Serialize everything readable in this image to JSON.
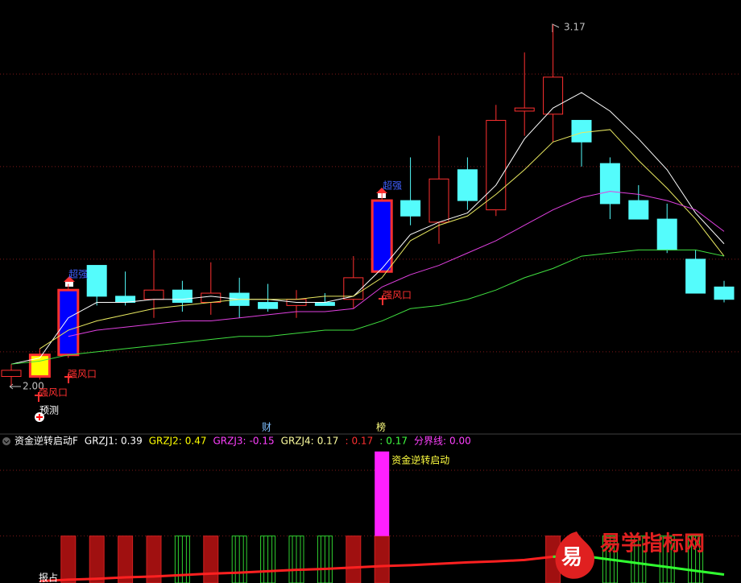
{
  "chart_data": [
    {
      "type": "candlestick",
      "ylim": [
        1.88,
        3.25
      ],
      "gridlines": [
        3.01,
        2.71,
        2.41,
        2.11
      ],
      "up_color": "#ff3030",
      "down_color": "#54fcfc",
      "open": [
        2.03,
        2.03,
        2.1,
        2.39,
        2.29,
        2.28,
        2.31,
        2.27,
        2.3,
        2.27,
        2.26,
        2.27,
        2.28,
        2.37,
        2.6,
        2.53,
        2.7,
        2.57,
        2.89,
        2.88,
        2.86,
        2.72,
        2.6,
        2.54,
        2.41,
        2.32
      ],
      "high": [
        2.07,
        2.12,
        2.33,
        2.39,
        2.37,
        2.44,
        2.34,
        2.4,
        2.35,
        2.33,
        2.31,
        2.3,
        2.42,
        2.63,
        2.74,
        2.81,
        2.74,
        2.91,
        3.08,
        3.17,
        2.86,
        2.74,
        2.65,
        2.59,
        2.44,
        2.34
      ],
      "low": [
        2.0,
        2.02,
        2.09,
        2.26,
        2.26,
        2.22,
        2.24,
        2.23,
        2.22,
        2.24,
        2.22,
        2.26,
        2.25,
        2.37,
        2.52,
        2.46,
        2.57,
        2.55,
        2.81,
        2.79,
        2.71,
        2.54,
        2.54,
        2.43,
        2.3,
        2.27
      ],
      "close": [
        2.05,
        2.1,
        2.31,
        2.29,
        2.27,
        2.31,
        2.27,
        2.3,
        2.26,
        2.25,
        2.28,
        2.26,
        2.35,
        2.6,
        2.55,
        2.67,
        2.6,
        2.86,
        2.9,
        3.0,
        2.79,
        2.59,
        2.54,
        2.44,
        2.3,
        2.28
      ],
      "body_colors": [
        null,
        "#ffff00",
        "#0000ff",
        null,
        null,
        null,
        null,
        null,
        null,
        null,
        null,
        null,
        null,
        "#0000ff",
        null,
        null,
        null,
        null,
        null,
        null,
        null,
        null,
        null,
        null,
        null,
        null
      ],
      "series": [
        {
          "color": "#ffffff",
          "values": [
            2.07,
            2.09,
            2.22,
            2.27,
            2.27,
            2.28,
            2.28,
            2.29,
            2.28,
            2.28,
            2.27,
            2.27,
            2.29,
            2.38,
            2.49,
            2.53,
            2.56,
            2.65,
            2.8,
            2.9,
            2.95,
            2.89,
            2.8,
            2.7,
            2.56,
            2.46
          ]
        },
        {
          "color": "#e8e860",
          "values": [
            null,
            2.12,
            2.18,
            2.21,
            2.23,
            2.25,
            2.26,
            2.27,
            2.28,
            2.28,
            2.28,
            2.29,
            2.29,
            2.35,
            2.47,
            2.52,
            2.55,
            2.62,
            2.7,
            2.79,
            2.82,
            2.83,
            2.73,
            2.64,
            2.54,
            2.42
          ]
        },
        {
          "color": "#e040e0",
          "values": [
            null,
            null,
            2.16,
            2.18,
            2.19,
            2.2,
            2.21,
            2.21,
            2.22,
            2.23,
            2.24,
            2.24,
            2.25,
            2.32,
            2.36,
            2.39,
            2.43,
            2.47,
            2.52,
            2.57,
            2.61,
            2.63,
            2.62,
            2.6,
            2.57,
            2.5
          ]
        },
        {
          "color": "#40e040",
          "values": [
            2.07,
            2.08,
            2.1,
            2.11,
            2.12,
            2.13,
            2.14,
            2.15,
            2.16,
            2.16,
            2.17,
            2.18,
            2.18,
            2.21,
            2.25,
            2.26,
            2.28,
            2.31,
            2.35,
            2.38,
            2.42,
            2.43,
            2.44,
            2.44,
            2.44,
            2.42
          ]
        }
      ],
      "annotations": [
        {
          "text": "3.17",
          "color": "#c0c0c0"
        },
        {
          "text": "2.00",
          "color": "#c0c0c0"
        },
        {
          "text": "超强",
          "color": "#4060ff"
        },
        {
          "text": "超强",
          "color": "#4060ff"
        },
        {
          "text": "强风口",
          "color": "#ff3030"
        },
        {
          "text": "强风口",
          "color": "#ff3030"
        },
        {
          "text": "强风口",
          "color": "#ff3030"
        },
        {
          "text": "预测",
          "color": "#ffffff"
        },
        {
          "text": "财",
          "color": "#80c0ff"
        },
        {
          "text": "榜",
          "color": "#ffff80"
        }
      ]
    },
    {
      "type": "bar",
      "ylim": [
        0,
        3
      ],
      "gridlines": [
        2.4,
        1.0
      ],
      "title": "资金逆转启动F",
      "legend": [
        {
          "label": "GRZJ1:",
          "value": 0.39,
          "color": "#ffffff"
        },
        {
          "label": "GRZJ2:",
          "value": 0.47,
          "color": "#ffff00"
        },
        {
          "label": "GRZJ3:",
          "value": -0.15,
          "color": "#ff40ff"
        },
        {
          "label": "GRZJ4:",
          "value": 0.17,
          "color": "#ffffa0"
        },
        {
          "label": ":",
          "value": 0.17,
          "color": "#ff3030"
        },
        {
          "label": ":",
          "value": 0.17,
          "color": "#40ff40"
        },
        {
          "label": "分界线:",
          "value": 0,
          "value_label": "0.00",
          "color": "#ff40ff"
        }
      ],
      "values": [
        null,
        null,
        1,
        1,
        1,
        1,
        1,
        1,
        1,
        1,
        1,
        1,
        1,
        1,
        null,
        null,
        null,
        null,
        null,
        1,
        null,
        1,
        1,
        1,
        1,
        null
      ],
      "colors": [
        null,
        null,
        "red",
        "red",
        "red",
        "red",
        "green",
        "red",
        "green",
        "green",
        "green",
        "green",
        "red",
        "red",
        null,
        null,
        null,
        null,
        null,
        "red",
        null,
        "green",
        "green",
        "green",
        "green",
        null
      ],
      "signal": {
        "text": "资金逆转启动",
        "color": "#ff20ff",
        "values": [
          null,
          null,
          null,
          null,
          null,
          null,
          null,
          null,
          null,
          null,
          null,
          null,
          null,
          1.8,
          null,
          null,
          null,
          null,
          null,
          null,
          null,
          null,
          null,
          null,
          null,
          null
        ]
      },
      "lines": [
        {
          "color": "#ff2020",
          "values": [
            null,
            0.04,
            0.07,
            0.09,
            0.12,
            0.14,
            0.17,
            0.2,
            0.22,
            0.25,
            0.28,
            0.3,
            0.33,
            0.36,
            0.38,
            0.41,
            0.44,
            0.46,
            0.49,
            0.56,
            null,
            null,
            null,
            null,
            null,
            null
          ]
        },
        {
          "color": "#30ff30",
          "values": [
            null,
            null,
            null,
            null,
            null,
            null,
            null,
            null,
            null,
            null,
            null,
            null,
            null,
            null,
            null,
            null,
            null,
            null,
            null,
            0.56,
            0.58,
            0.5,
            0.42,
            0.34,
            0.26,
            0.18
          ]
        }
      ],
      "footer": "报占"
    }
  ],
  "watermark": {
    "logo": "易",
    "text": "易学指标网"
  }
}
